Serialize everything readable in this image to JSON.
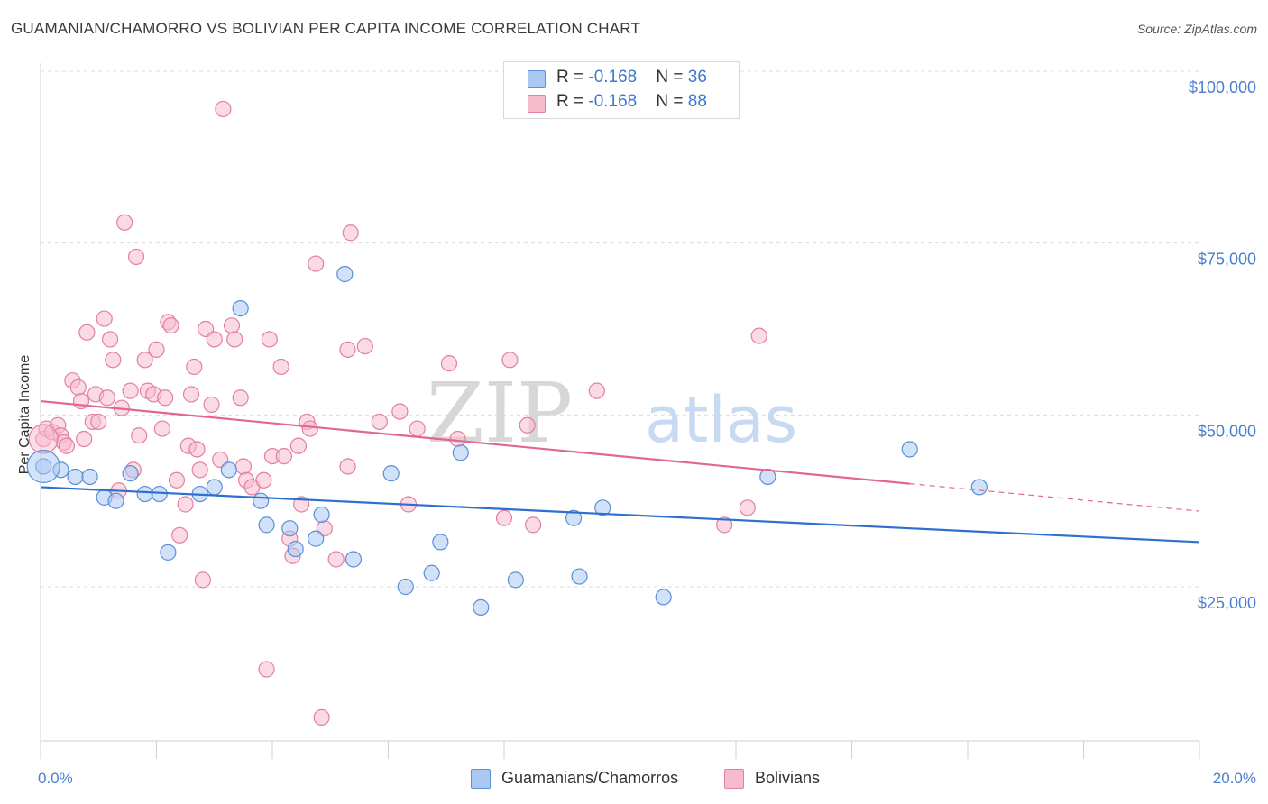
{
  "title": "GUAMANIAN/CHAMORRO VS BOLIVIAN PER CAPITA INCOME CORRELATION CHART",
  "source": "Source: ZipAtlas.com",
  "watermark": {
    "zip": "ZIP",
    "atlas": "atlas"
  },
  "legend": {
    "rows": [
      {
        "r_label": "R = ",
        "r_value": "-0.168",
        "n_label": "N = ",
        "n_value": "36",
        "color": "#a9c8f3"
      },
      {
        "r_label": "R = ",
        "r_value": "-0.168",
        "n_label": "N = ",
        "n_value": "88",
        "color": "#f6bccd"
      }
    ]
  },
  "bottom_legend": [
    {
      "label": "Guamanians/Chamorros",
      "color": "#a9c8f3"
    },
    {
      "label": "Bolivians",
      "color": "#f6bccd"
    }
  ],
  "colors": {
    "blue_fill": "#a9c8f3",
    "blue_stroke": "#5b8fd8",
    "blue_line": "#2f6fcf",
    "pink_fill": "#f6bccd",
    "pink_stroke": "#e47fa1",
    "pink_line": "#e36591",
    "grid": "#dcdcdc",
    "axis_text": "#4a7fd0"
  },
  "chart_data": {
    "type": "scatter",
    "title": "GUAMANIAN/CHAMORRO VS BOLIVIAN PER CAPITA INCOME CORRELATION CHART",
    "xlabel": "",
    "ylabel": "Per Capita Income",
    "xlim": [
      0,
      20
    ],
    "ylim": [
      0,
      104000
    ],
    "x_tick_labels": [
      "0.0%",
      "20.0%"
    ],
    "y_ticks": [
      25000,
      50000,
      75000,
      100000
    ],
    "y_tick_labels": [
      "$25,000",
      "$50,000",
      "$75,000",
      "$100,000"
    ],
    "grid": true,
    "legend_position": "top-center",
    "series": [
      {
        "name": "Guamanians/Chamorros",
        "R": -0.168,
        "N": 36,
        "trend": {
          "x": [
            0,
            20
          ],
          "y": [
            39500,
            31500
          ]
        },
        "points": [
          [
            0.05,
            42500
          ],
          [
            0.35,
            42000
          ],
          [
            0.6,
            41000
          ],
          [
            0.85,
            41000
          ],
          [
            1.1,
            38000
          ],
          [
            1.3,
            37500
          ],
          [
            1.55,
            41500
          ],
          [
            1.8,
            38500
          ],
          [
            2.05,
            38500
          ],
          [
            2.2,
            30000
          ],
          [
            2.75,
            38500
          ],
          [
            3.0,
            39500
          ],
          [
            3.25,
            42000
          ],
          [
            3.45,
            65500
          ],
          [
            3.8,
            37500
          ],
          [
            3.9,
            34000
          ],
          [
            4.3,
            33500
          ],
          [
            4.4,
            30500
          ],
          [
            4.75,
            32000
          ],
          [
            4.85,
            35500
          ],
          [
            5.25,
            70500
          ],
          [
            5.4,
            29000
          ],
          [
            6.05,
            41500
          ],
          [
            6.3,
            25000
          ],
          [
            6.75,
            27000
          ],
          [
            6.9,
            31500
          ],
          [
            7.25,
            44500
          ],
          [
            7.6,
            22000
          ],
          [
            8.2,
            26000
          ],
          [
            9.2,
            35000
          ],
          [
            9.3,
            26500
          ],
          [
            9.7,
            36500
          ],
          [
            10.75,
            23500
          ],
          [
            12.55,
            41000
          ],
          [
            15.0,
            45000
          ],
          [
            16.2,
            39500
          ]
        ]
      },
      {
        "name": "Bolivians",
        "R": -0.168,
        "N": 88,
        "trend": {
          "x": [
            0,
            15.0
          ],
          "y": [
            52000,
            40000
          ]
        },
        "trend_dashed": {
          "x": [
            15.0,
            20
          ],
          "y": [
            40000,
            36000
          ]
        },
        "points": [
          [
            0.05,
            46500
          ],
          [
            0.1,
            48000
          ],
          [
            0.2,
            47500
          ],
          [
            0.3,
            48500
          ],
          [
            0.35,
            47000
          ],
          [
            0.4,
            46000
          ],
          [
            0.45,
            45500
          ],
          [
            0.55,
            55000
          ],
          [
            0.65,
            54000
          ],
          [
            0.7,
            52000
          ],
          [
            0.75,
            46500
          ],
          [
            0.8,
            62000
          ],
          [
            0.9,
            49000
          ],
          [
            0.95,
            53000
          ],
          [
            1.0,
            49000
          ],
          [
            1.1,
            64000
          ],
          [
            1.15,
            52500
          ],
          [
            1.2,
            61000
          ],
          [
            1.25,
            58000
          ],
          [
            1.35,
            39000
          ],
          [
            1.4,
            51000
          ],
          [
            1.45,
            78000
          ],
          [
            1.55,
            53500
          ],
          [
            1.6,
            42000
          ],
          [
            1.65,
            73000
          ],
          [
            1.7,
            47000
          ],
          [
            1.8,
            58000
          ],
          [
            1.85,
            53500
          ],
          [
            1.95,
            53000
          ],
          [
            2.0,
            59500
          ],
          [
            2.1,
            48000
          ],
          [
            2.15,
            52500
          ],
          [
            2.2,
            63500
          ],
          [
            2.25,
            63000
          ],
          [
            2.35,
            40500
          ],
          [
            2.4,
            32500
          ],
          [
            2.5,
            37000
          ],
          [
            2.55,
            45500
          ],
          [
            2.6,
            53000
          ],
          [
            2.65,
            57000
          ],
          [
            2.7,
            45000
          ],
          [
            2.75,
            42000
          ],
          [
            2.8,
            26000
          ],
          [
            2.85,
            62500
          ],
          [
            2.95,
            51500
          ],
          [
            3.0,
            61000
          ],
          [
            3.1,
            43500
          ],
          [
            3.15,
            94500
          ],
          [
            3.3,
            63000
          ],
          [
            3.35,
            61000
          ],
          [
            3.45,
            52500
          ],
          [
            3.5,
            42500
          ],
          [
            3.55,
            40500
          ],
          [
            3.65,
            39500
          ],
          [
            3.85,
            40500
          ],
          [
            3.9,
            13000
          ],
          [
            3.95,
            61000
          ],
          [
            4.0,
            44000
          ],
          [
            4.15,
            57000
          ],
          [
            4.2,
            44000
          ],
          [
            4.3,
            32000
          ],
          [
            4.35,
            29500
          ],
          [
            4.45,
            45500
          ],
          [
            4.5,
            37000
          ],
          [
            4.6,
            49000
          ],
          [
            4.65,
            48000
          ],
          [
            4.75,
            72000
          ],
          [
            4.85,
            6000
          ],
          [
            4.9,
            33500
          ],
          [
            5.1,
            29000
          ],
          [
            5.3,
            59500
          ],
          [
            5.3,
            42500
          ],
          [
            5.35,
            76500
          ],
          [
            5.6,
            60000
          ],
          [
            5.85,
            49000
          ],
          [
            6.2,
            50500
          ],
          [
            6.35,
            37000
          ],
          [
            6.5,
            48000
          ],
          [
            7.05,
            57500
          ],
          [
            7.2,
            46500
          ],
          [
            8.0,
            35000
          ],
          [
            8.1,
            58000
          ],
          [
            8.4,
            48500
          ],
          [
            8.5,
            34000
          ],
          [
            9.6,
            53500
          ],
          [
            11.8,
            34000
          ],
          [
            12.2,
            36500
          ],
          [
            12.4,
            61500
          ]
        ]
      }
    ]
  }
}
